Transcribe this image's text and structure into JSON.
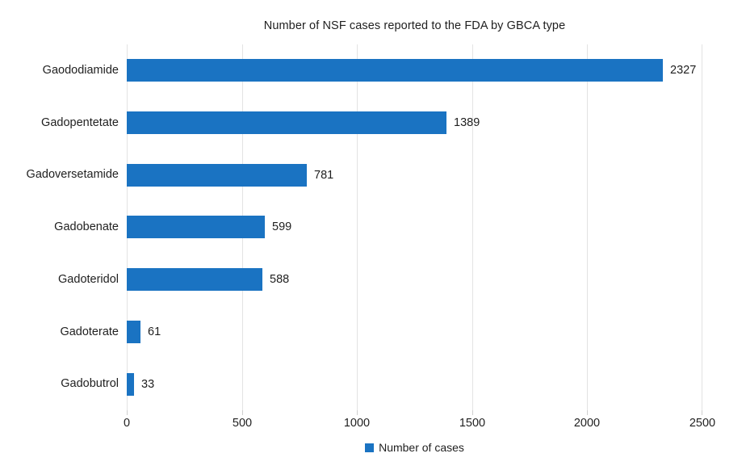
{
  "title": "Number of NSF cases reported to the FDA by GBCA type",
  "legend": {
    "label": "Number of cases",
    "swatch_icon": "legend-square-icon"
  },
  "colors": {
    "bar": "#1a73c2",
    "gridline": "#e3e3e3",
    "tick": "#cfcfcf",
    "text": "#1f1f1f",
    "background": "#ffffff"
  },
  "chart_data": {
    "type": "bar",
    "orientation": "horizontal",
    "title": "Number of NSF cases reported to the FDA by GBCA type",
    "categories": [
      "Gaododiamide",
      "Gadopentetate",
      "Gadoversetamide",
      "Gadobenate",
      "Gadoteridol",
      "Gadoterate",
      "Gadobutrol"
    ],
    "values": [
      2327,
      1389,
      781,
      599,
      588,
      61,
      33
    ],
    "data_labels": [
      "2327",
      "1389",
      "781",
      "599",
      "588",
      "61",
      "33"
    ],
    "xlabel": "",
    "ylabel": "",
    "xlim": [
      0,
      2500
    ],
    "xticks": [
      0,
      500,
      1000,
      1500,
      2000,
      2500
    ],
    "xtick_labels": [
      "0",
      "500",
      "1000",
      "1500",
      "2000",
      "2500"
    ],
    "grid": true,
    "legend": [
      "Number of cases"
    ],
    "legend_position": "bottom"
  }
}
